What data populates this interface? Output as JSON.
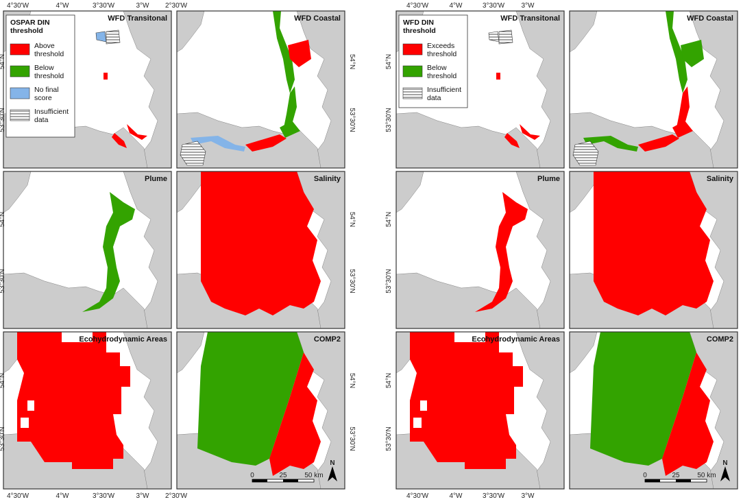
{
  "colors": {
    "above": "#ff0000",
    "below": "#33a300",
    "no_score": "#84b4e8",
    "land": "#cccccc",
    "sea": "#ffffff",
    "frame": "#333333"
  },
  "figures": [
    {
      "id": "left",
      "legend": {
        "title_lines": [
          "OSPAR DIN",
          "threshold"
        ],
        "items": [
          {
            "label_lines": [
              "Above",
              "threshold"
            ],
            "swatch": "above"
          },
          {
            "label_lines": [
              "Below",
              "threshold"
            ],
            "swatch": "below"
          },
          {
            "label_lines": [
              "No final",
              "score"
            ],
            "swatch": "no_score"
          },
          {
            "label_lines": [
              "Insufficient",
              "data"
            ],
            "swatch": "insufficient"
          }
        ]
      },
      "panels": [
        {
          "title": "WFD Transitonal",
          "assessment": "transitional",
          "colors": {
            "sec_a": "above",
            "sec_b": "above",
            "sec_c": "above",
            "sec_d": "no_score",
            "sec_e": "insufficient"
          }
        },
        {
          "title": "WFD Coastal",
          "assessment": "coastal",
          "colors": {
            "north": "below",
            "bay": "above",
            "mid": "below",
            "low": "below",
            "south": "above",
            "west": "no_score"
          }
        },
        {
          "title": "Plume",
          "assessment": "plume",
          "colors": {
            "fill": "below"
          }
        },
        {
          "title": "Salinity",
          "assessment": "salinity",
          "colors": {
            "fill": "above"
          }
        },
        {
          "title": "Ecohydrodynamic Areas",
          "assessment": "ecohydrodynamic",
          "colors": {
            "fill": "above"
          }
        },
        {
          "title": "COMP2",
          "assessment": "comp2",
          "colors": {
            "west": "below",
            "east": "above"
          }
        }
      ],
      "bottom_ticks": [
        "4°30'W",
        "4°W",
        "3°30'W",
        "3°W",
        "2°30'W"
      ],
      "top_ticks": [
        "4°30'W",
        "4°W",
        "3°30'W",
        "3°W",
        "2°30'W"
      ],
      "left_ticks": [
        "54°N",
        "53°30'N"
      ],
      "right_ticks": [
        "54°N",
        "53°30'N"
      ]
    },
    {
      "id": "right",
      "legend": {
        "title_lines": [
          "WFD DIN",
          "threshold"
        ],
        "items": [
          {
            "label_lines": [
              "Exceeds",
              "threshold"
            ],
            "swatch": "above"
          },
          {
            "label_lines": [
              "Below",
              "threshold"
            ],
            "swatch": "below"
          },
          {
            "label_lines": [
              "Insufficient",
              "data"
            ],
            "swatch": "insufficient"
          }
        ]
      },
      "panels": [
        {
          "title": "WFD Transitonal",
          "assessment": "transitional",
          "colors": {
            "sec_a": "above",
            "sec_b": "above",
            "sec_c": "above",
            "sec_d": "insufficient",
            "sec_e": "insufficient"
          }
        },
        {
          "title": "WFD Coastal",
          "assessment": "coastal",
          "colors": {
            "north": "below",
            "bay": "below",
            "mid": "above",
            "low": "above",
            "south": "above",
            "west": "below"
          }
        },
        {
          "title": "Plume",
          "assessment": "plume",
          "colors": {
            "fill": "above"
          }
        },
        {
          "title": "Salinity",
          "assessment": "salinity",
          "colors": {
            "fill": "above"
          }
        },
        {
          "title": "Ecohydrodynamic Areas",
          "assessment": "ecohydrodynamic",
          "colors": {
            "fill": "above"
          }
        },
        {
          "title": "COMP2",
          "assessment": "comp2",
          "colors": {
            "west": "below",
            "east": "above"
          }
        }
      ],
      "bottom_ticks": [
        "4°30'W",
        "4°W",
        "3°30'W",
        "3°W"
      ],
      "top_ticks": [
        "4°30'W",
        "4°W",
        "3°30'W",
        "3°W"
      ],
      "left_ticks": [
        "54°N",
        "53°30'N"
      ],
      "right_ticks": [
        "54°N",
        "53°30'N"
      ]
    }
  ],
  "scale_bar": {
    "labels": [
      "0",
      "25",
      "50 km"
    ]
  },
  "north_arrow": {
    "label": "N"
  }
}
